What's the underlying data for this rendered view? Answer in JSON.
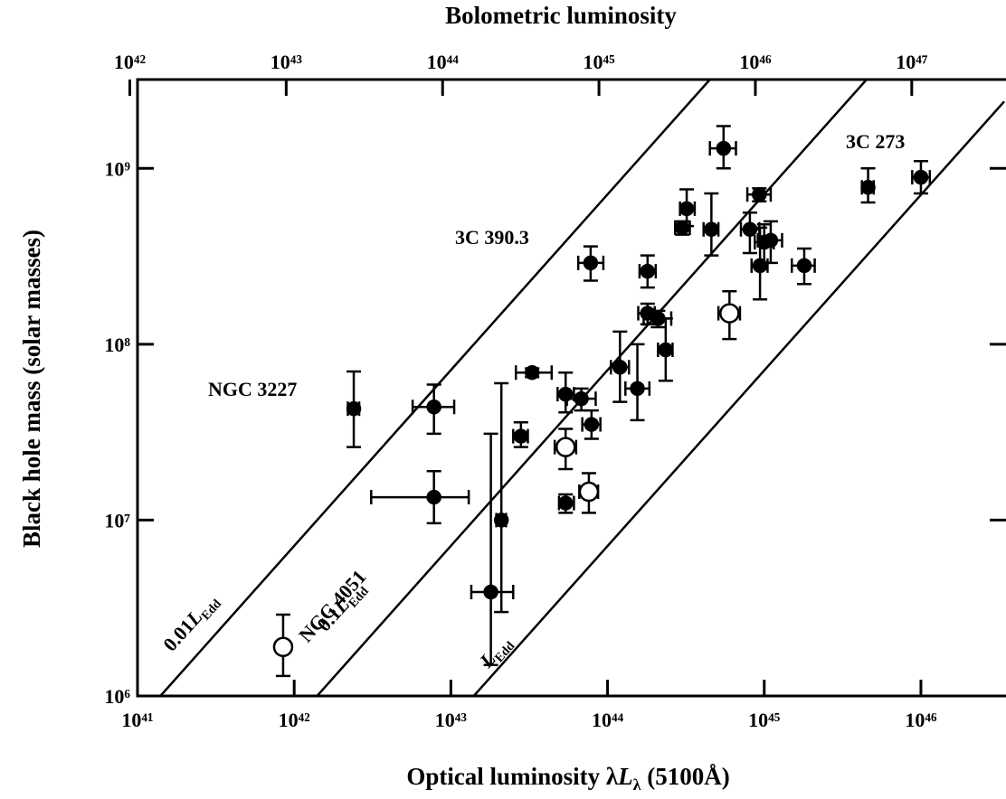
{
  "chart_data": {
    "type": "scatter",
    "title": "Bolometric luminosity",
    "xlabel": {
      "text": "Optical luminosity λ",
      "italic": "L",
      "sub": "λ",
      "suffix": " (5100Å)"
    },
    "ylabel": "Black hole mass (solar masses)",
    "log_x": true,
    "log_y": true,
    "xlim": [
      1e+41,
      3.4e+46
    ],
    "ylim": [
      1000000.0,
      3200000000.0
    ],
    "x2lim": [
      1.12e+42,
      3.9e+47
    ],
    "xticks": [
      {
        "value": 1e+41,
        "label": "10⁴¹"
      },
      {
        "value": 1e+42,
        "label": "10⁴²"
      },
      {
        "value": 1e+43,
        "label": "10⁴³"
      },
      {
        "value": 1e+44,
        "label": "10⁴⁴"
      },
      {
        "value": 1e+45,
        "label": "10⁴⁵"
      },
      {
        "value": 1e+46,
        "label": "10⁴⁶"
      }
    ],
    "yticks": [
      {
        "value": 1000000.0,
        "label": "10⁶"
      },
      {
        "value": 10000000.0,
        "label": "10⁷"
      },
      {
        "value": 100000000.0,
        "label": "10⁸"
      },
      {
        "value": 1000000000.0,
        "label": "10⁹"
      }
    ],
    "x2ticks": [
      {
        "value": 1e+42,
        "label": "10⁴²"
      },
      {
        "value": 1e+43,
        "label": "10⁴³"
      },
      {
        "value": 1e+44,
        "label": "10⁴⁴"
      },
      {
        "value": 1e+45,
        "label": "10⁴⁵"
      },
      {
        "value": 1e+46,
        "label": "10⁴⁶"
      },
      {
        "value": 1e+47,
        "label": "10⁴⁷"
      }
    ],
    "series": [
      {
        "marker": "filled",
        "color": "#000000",
        "x": [
          2.4e+42,
          7.8e+42,
          7.8e+42,
          1.8e+43,
          2.1e+43,
          2.8e+43,
          3.3e+43,
          5.4e+43,
          5.4e+43,
          6.8e+43,
          7.9e+43,
          7.8e+43,
          1.2e+44,
          1.55e+44,
          1.8e+44,
          1.8e+44,
          2.1e+44,
          2.35e+44,
          3e+44,
          3.2e+44,
          4.6e+44,
          5.5e+44,
          8.1e+44,
          9.3e+44,
          1e+45,
          9.4e+44,
          1.1e+45,
          1.8e+45,
          4.6e+45,
          1e+46
        ],
        "x_low": [
          2.2e+42,
          5.7e+42,
          3.1e+42,
          1.35e+43,
          1.95e+43,
          2.5e+43,
          2.6e+43,
          4.8e+43,
          4.9e+43,
          5.5e+43,
          6.9e+43,
          6.5e+43,
          1.05e+44,
          1.3e+44,
          1.57e+44,
          1.6e+44,
          1.7e+44,
          2.1e+44,
          2.7e+44,
          2.9e+44,
          4.1e+44,
          4.5e+44,
          7.1e+44,
          7.8e+44,
          8.7e+44,
          8.3e+44,
          9.1e+44,
          1.5e+45,
          4.2e+45,
          8.8e+45
        ],
        "x_high": [
          2.6e+42,
          1.05e+43,
          1.3e+43,
          2.5e+43,
          2.25e+43,
          3.1e+43,
          4.4e+43,
          6.1e+43,
          6.1e+43,
          8.4e+43,
          9e+43,
          9.4e+43,
          1.37e+44,
          1.85e+44,
          2e+44,
          2.03e+44,
          2.55e+44,
          2.6e+44,
          3.35e+44,
          3.6e+44,
          5.1e+44,
          6.6e+44,
          9.3e+44,
          1.1e+45,
          1.15e+45,
          1.05e+45,
          1.3e+45,
          2.1e+45,
          5e+45,
          1.14e+46
        ],
        "y": [
          43000000.0,
          44000000.0,
          13500000.0,
          3900000.0,
          10000000.0,
          30000000.0,
          69000000.0,
          52000000.0,
          12500000.0,
          49000000.0,
          35000000.0,
          290000000.0,
          74000000.0,
          56000000.0,
          150000000.0,
          260000000.0,
          140000000.0,
          93000000.0,
          460000000.0,
          590000000.0,
          450000000.0,
          1300000000.0,
          450000000.0,
          710000000.0,
          380000000.0,
          280000000.0,
          390000000.0,
          280000000.0,
          780000000.0,
          890000000.0
        ],
        "y_low": [
          26000000.0,
          31000000.0,
          9600000.0,
          1500000.0,
          3000000.0,
          26000000.0,
          65000000.0,
          41000000.0,
          11000000.0,
          42000000.0,
          29000000.0,
          230000000.0,
          47000000.0,
          37000000.0,
          130000000.0,
          210000000.0,
          125000000.0,
          62000000.0,
          420000000.0,
          470000000.0,
          320000000.0,
          1000000000.0,
          330000000.0,
          650000000.0,
          290000000.0,
          180000000.0,
          290000000.0,
          220000000.0,
          640000000.0,
          720000000.0
        ],
        "y_high": [
          70000000.0,
          59000000.0,
          19000000.0,
          31000000.0,
          60000000.0,
          36000000.0,
          73000000.0,
          69000000.0,
          14000000.0,
          56000000.0,
          42000000.0,
          360000000.0,
          118000000.0,
          100000000.0,
          170000000.0,
          320000000.0,
          155000000.0,
          140000000.0,
          500000000.0,
          760000000.0,
          720000000.0,
          1740000000.0,
          560000000.0,
          770000000.0,
          480000000.0,
          460000000.0,
          500000000.0,
          350000000.0,
          1000000000.0,
          1100000000.0
        ]
      },
      {
        "marker": "open",
        "color": "#000000",
        "x": [
          8.5e+41,
          5.4e+43,
          7.6e+43,
          6e+44
        ],
        "x_low": [
          7.8e+41,
          4.6e+43,
          6.6e+43,
          5.1e+44
        ],
        "x_high": [
          9.3e+41,
          6.3e+43,
          8.7e+43,
          7e+44
        ],
        "y": [
          1900000.0,
          26000000.0,
          14500000.0,
          150000000.0
        ],
        "y_low": [
          1300000.0,
          19500000.0,
          11000000.0,
          107000000.0
        ],
        "y_high": [
          2900000.0,
          33000000.0,
          18500000.0,
          200000000.0
        ]
      }
    ],
    "reference_lines": [
      {
        "prefix": "0.01",
        "symbol": "L",
        "sub": "Edd",
        "x": [
          1.4e+41,
          4.5e+44
        ],
        "y": [
          1000000.0,
          3200000000.0
        ]
      },
      {
        "prefix": "0.1",
        "symbol": "L",
        "sub": "Edd",
        "x": [
          1.4e+42,
          4.5e+45
        ],
        "y": [
          1000000.0,
          3200000000.0
        ]
      },
      {
        "prefix": "",
        "symbol": "L",
        "sub": "Edd",
        "x": [
          1.4e+43,
          3.4e+46
        ],
        "y": [
          1000000.0,
          2400000000.0
        ]
      }
    ],
    "annotations": [
      "NGC 3227",
      "3C 390.3",
      "3C 273",
      "NGC 4051"
    ]
  }
}
